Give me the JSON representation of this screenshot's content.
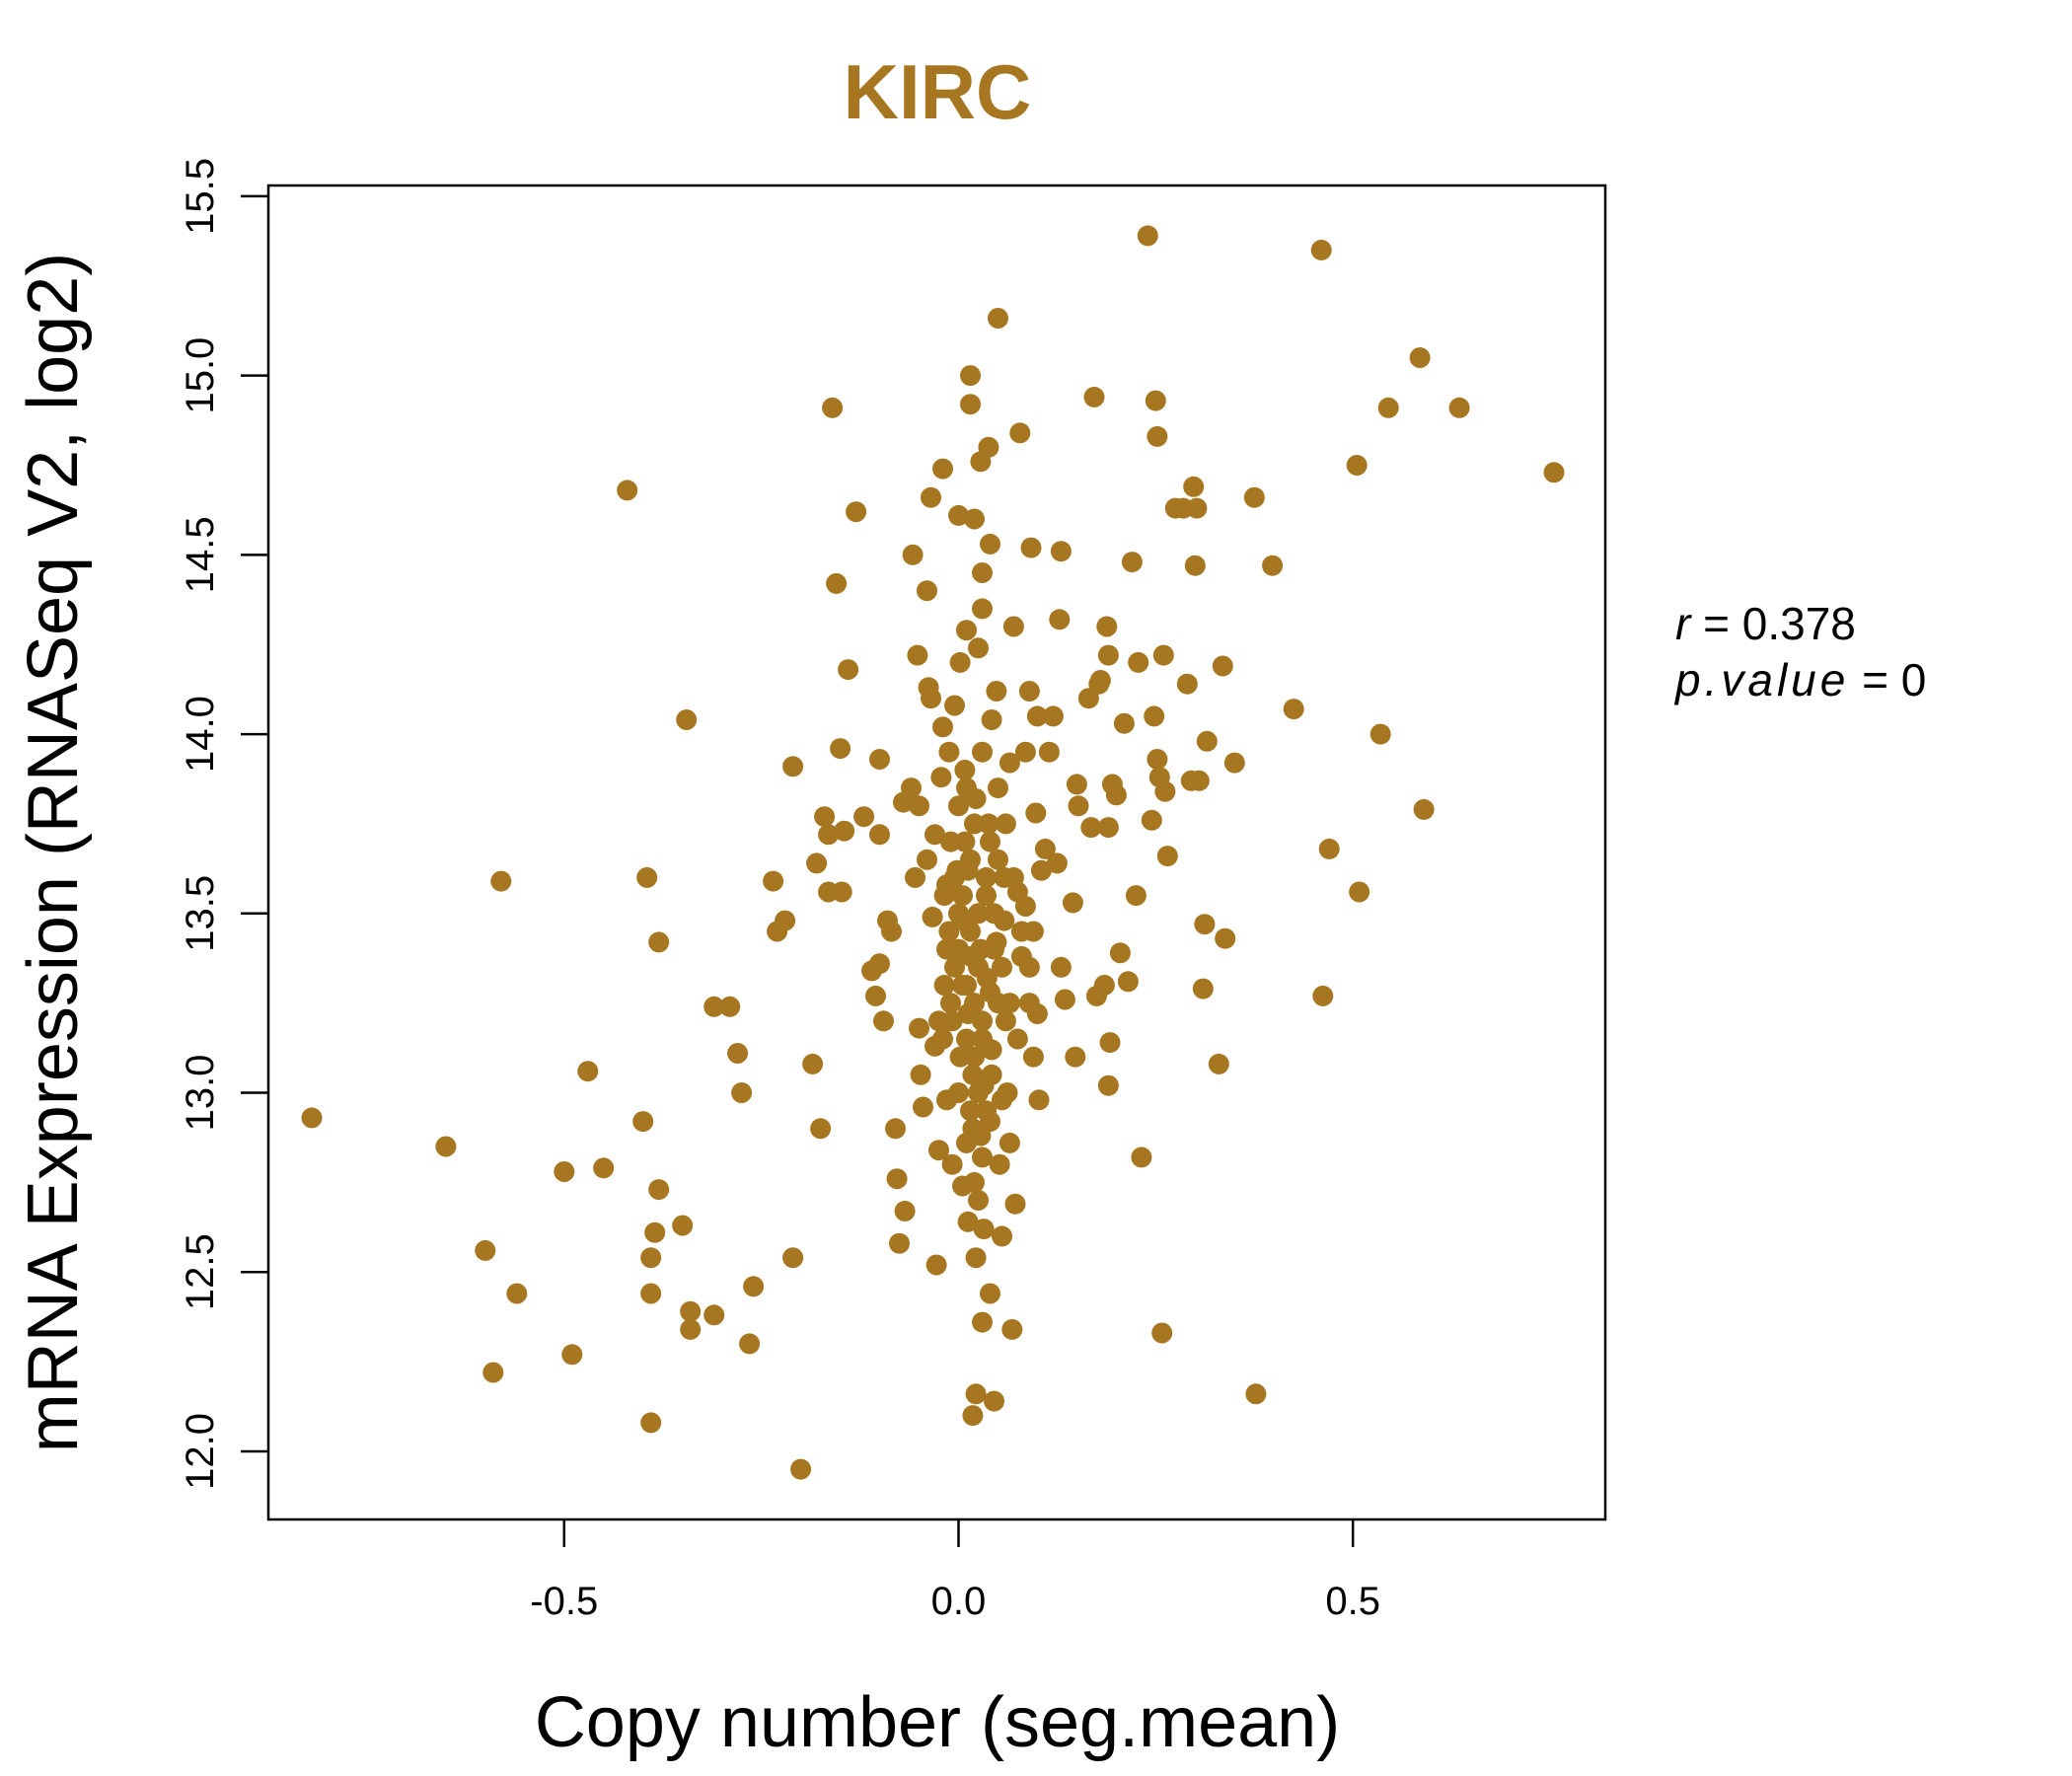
{
  "chart_data": {
    "type": "scatter",
    "title": "KIRC",
    "xlabel": "Copy number (seg.mean)",
    "ylabel": "mRNA Expression (RNASeq V2, log2)",
    "xlim": [
      -0.875,
      0.82
    ],
    "ylim": [
      11.81,
      15.53
    ],
    "x_ticks": [
      -0.5,
      0.0,
      0.5
    ],
    "x_tick_labels": [
      "-0.5",
      "0.0",
      "0.5"
    ],
    "y_ticks": [
      12.0,
      12.5,
      13.0,
      13.5,
      14.0,
      14.5,
      15.0,
      15.5
    ],
    "y_tick_labels": [
      "12.0",
      "12.5",
      "13.0",
      "13.5",
      "14.0",
      "14.5",
      "15.0",
      "15.5"
    ],
    "grid": false,
    "color": "#A67720",
    "stats": {
      "r_label": "r",
      "r_value": "0.378",
      "p_label": "p.value",
      "p_value": "0"
    },
    "points": [
      [
        -0.82,
        12.93
      ],
      [
        -0.65,
        12.85
      ],
      [
        -0.6,
        12.56
      ],
      [
        -0.59,
        12.22
      ],
      [
        -0.58,
        13.59
      ],
      [
        -0.56,
        12.44
      ],
      [
        -0.5,
        12.78
      ],
      [
        -0.49,
        12.27
      ],
      [
        -0.47,
        13.06
      ],
      [
        -0.45,
        12.79
      ],
      [
        -0.42,
        14.68
      ],
      [
        -0.4,
        12.92
      ],
      [
        -0.395,
        13.6
      ],
      [
        -0.39,
        12.54
      ],
      [
        -0.39,
        12.44
      ],
      [
        -0.39,
        12.08
      ],
      [
        -0.385,
        12.61
      ],
      [
        -0.38,
        13.42
      ],
      [
        -0.38,
        12.73
      ],
      [
        -0.35,
        12.63
      ],
      [
        -0.345,
        14.04
      ],
      [
        -0.34,
        12.39
      ],
      [
        -0.34,
        12.34
      ],
      [
        -0.31,
        13.24
      ],
      [
        -0.31,
        12.38
      ],
      [
        -0.29,
        13.24
      ],
      [
        -0.28,
        13.11
      ],
      [
        -0.275,
        13.0
      ],
      [
        -0.265,
        12.3
      ],
      [
        -0.26,
        12.46
      ],
      [
        -0.235,
        13.59
      ],
      [
        -0.23,
        13.45
      ],
      [
        -0.22,
        13.48
      ],
      [
        -0.21,
        13.91
      ],
      [
        -0.21,
        12.54
      ],
      [
        -0.2,
        11.95
      ],
      [
        -0.185,
        13.08
      ],
      [
        -0.18,
        13.64
      ],
      [
        -0.175,
        12.9
      ],
      [
        -0.17,
        13.77
      ],
      [
        -0.165,
        13.72
      ],
      [
        -0.165,
        13.56
      ],
      [
        -0.16,
        14.91
      ],
      [
        -0.155,
        14.42
      ],
      [
        -0.15,
        13.96
      ],
      [
        -0.148,
        13.56
      ],
      [
        -0.145,
        13.73
      ],
      [
        -0.14,
        14.18
      ],
      [
        -0.13,
        14.62
      ],
      [
        -0.12,
        13.77
      ],
      [
        -0.11,
        13.34
      ],
      [
        -0.105,
        13.27
      ],
      [
        -0.1,
        13.93
      ],
      [
        -0.1,
        13.36
      ],
      [
        -0.1,
        13.72
      ],
      [
        -0.095,
        13.2
      ],
      [
        -0.09,
        13.48
      ],
      [
        -0.085,
        13.45
      ],
      [
        -0.08,
        12.9
      ],
      [
        -0.078,
        12.76
      ],
      [
        -0.075,
        12.58
      ],
      [
        -0.07,
        13.81
      ],
      [
        -0.068,
        12.67
      ],
      [
        -0.06,
        13.85
      ],
      [
        -0.058,
        14.5
      ],
      [
        -0.055,
        13.6
      ],
      [
        -0.052,
        14.22
      ],
      [
        -0.05,
        13.18
      ],
      [
        -0.05,
        13.8
      ],
      [
        -0.048,
        13.05
      ],
      [
        -0.045,
        12.96
      ],
      [
        -0.04,
        14.4
      ],
      [
        -0.04,
        13.65
      ],
      [
        -0.038,
        14.13
      ],
      [
        -0.035,
        14.1
      ],
      [
        -0.035,
        14.66
      ],
      [
        -0.033,
        13.49
      ],
      [
        -0.03,
        13.13
      ],
      [
        -0.03,
        13.72
      ],
      [
        -0.028,
        12.52
      ],
      [
        -0.025,
        13.2
      ],
      [
        -0.025,
        12.84
      ],
      [
        -0.022,
        13.88
      ],
      [
        -0.02,
        14.02
      ],
      [
        -0.02,
        14.74
      ],
      [
        -0.018,
        13.55
      ],
      [
        -0.015,
        13.4
      ],
      [
        -0.015,
        12.98
      ],
      [
        -0.012,
        13.95
      ],
      [
        -0.01,
        13.7
      ],
      [
        -0.01,
        13.25
      ],
      [
        -0.008,
        12.8
      ],
      [
        -0.005,
        14.08
      ],
      [
        -0.005,
        13.6
      ],
      [
        0.0,
        13.0
      ],
      [
        0.0,
        13.5
      ],
      [
        0.0,
        13.8
      ],
      [
        0.0,
        14.61
      ],
      [
        0.002,
        14.2
      ],
      [
        0.005,
        13.3
      ],
      [
        0.005,
        12.74
      ],
      [
        0.008,
        13.9
      ],
      [
        0.01,
        14.29
      ],
      [
        0.01,
        13.15
      ],
      [
        0.012,
        13.62
      ],
      [
        0.012,
        12.64
      ],
      [
        0.015,
        14.92
      ],
      [
        0.015,
        15.0
      ],
      [
        0.015,
        13.45
      ],
      [
        0.018,
        12.9
      ],
      [
        0.018,
        12.1
      ],
      [
        0.02,
        14.6
      ],
      [
        0.02,
        13.75
      ],
      [
        0.02,
        13.1
      ],
      [
        0.022,
        12.54
      ],
      [
        0.022,
        12.16
      ],
      [
        0.025,
        14.24
      ],
      [
        0.025,
        13.35
      ],
      [
        0.025,
        12.7
      ],
      [
        0.028,
        14.76
      ],
      [
        0.03,
        14.45
      ],
      [
        0.03,
        14.35
      ],
      [
        0.03,
        13.95
      ],
      [
        0.03,
        13.2
      ],
      [
        0.03,
        12.36
      ],
      [
        0.032,
        12.62
      ],
      [
        0.035,
        13.55
      ],
      [
        0.035,
        12.95
      ],
      [
        0.038,
        14.8
      ],
      [
        0.04,
        14.53
      ],
      [
        0.04,
        13.7
      ],
      [
        0.04,
        12.44
      ],
      [
        0.042,
        14.04
      ],
      [
        0.042,
        13.05
      ],
      [
        0.045,
        12.14
      ],
      [
        0.045,
        13.4
      ],
      [
        0.048,
        14.12
      ],
      [
        0.05,
        15.16
      ],
      [
        0.05,
        13.85
      ],
      [
        0.05,
        13.25
      ],
      [
        0.052,
        12.8
      ],
      [
        0.055,
        12.6
      ],
      [
        0.058,
        13.6
      ],
      [
        0.06,
        13.75
      ],
      [
        0.062,
        13.0
      ],
      [
        0.065,
        13.92
      ],
      [
        0.065,
        12.86
      ],
      [
        0.068,
        12.34
      ],
      [
        0.07,
        14.3
      ],
      [
        0.072,
        12.69
      ],
      [
        0.075,
        13.56
      ],
      [
        0.078,
        14.84
      ],
      [
        0.08,
        13.45
      ],
      [
        0.085,
        13.95
      ],
      [
        0.09,
        14.12
      ],
      [
        0.09,
        13.35
      ],
      [
        0.092,
        14.52
      ],
      [
        0.095,
        13.1
      ],
      [
        0.098,
        13.78
      ],
      [
        0.1,
        14.05
      ],
      [
        0.1,
        13.22
      ],
      [
        0.102,
        12.98
      ],
      [
        0.105,
        13.62
      ],
      [
        0.11,
        13.68
      ],
      [
        0.115,
        13.95
      ],
      [
        0.12,
        14.05
      ],
      [
        0.125,
        13.64
      ],
      [
        0.128,
        14.32
      ],
      [
        0.13,
        14.51
      ],
      [
        0.13,
        13.35
      ],
      [
        0.135,
        13.26
      ],
      [
        0.145,
        13.53
      ],
      [
        0.148,
        13.1
      ],
      [
        0.15,
        13.86
      ],
      [
        0.152,
        13.8
      ],
      [
        0.165,
        14.1
      ],
      [
        0.168,
        13.74
      ],
      [
        0.172,
        14.94
      ],
      [
        0.175,
        13.27
      ],
      [
        0.178,
        14.14
      ],
      [
        0.18,
        14.15
      ],
      [
        0.185,
        13.3
      ],
      [
        0.188,
        14.3
      ],
      [
        0.19,
        14.22
      ],
      [
        0.19,
        13.74
      ],
      [
        0.19,
        13.02
      ],
      [
        0.192,
        13.14
      ],
      [
        0.195,
        13.86
      ],
      [
        0.2,
        13.83
      ],
      [
        0.205,
        13.39
      ],
      [
        0.21,
        14.03
      ],
      [
        0.215,
        13.31
      ],
      [
        0.22,
        14.48
      ],
      [
        0.225,
        13.55
      ],
      [
        0.228,
        14.2
      ],
      [
        0.232,
        12.82
      ],
      [
        0.24,
        15.39
      ],
      [
        0.245,
        13.76
      ],
      [
        0.248,
        14.05
      ],
      [
        0.25,
        14.93
      ],
      [
        0.252,
        14.83
      ],
      [
        0.252,
        13.93
      ],
      [
        0.255,
        13.88
      ],
      [
        0.26,
        14.22
      ],
      [
        0.262,
        13.84
      ],
      [
        0.265,
        13.66
      ],
      [
        0.258,
        12.33
      ],
      [
        0.275,
        14.63
      ],
      [
        0.285,
        14.63
      ],
      [
        0.29,
        14.14
      ],
      [
        0.295,
        13.87
      ],
      [
        0.298,
        14.69
      ],
      [
        0.3,
        14.47
      ],
      [
        0.302,
        14.63
      ],
      [
        0.305,
        13.87
      ],
      [
        0.31,
        13.29
      ],
      [
        0.312,
        13.47
      ],
      [
        0.315,
        13.98
      ],
      [
        0.33,
        13.08
      ],
      [
        0.335,
        14.19
      ],
      [
        0.338,
        13.43
      ],
      [
        0.35,
        13.92
      ],
      [
        0.375,
        14.66
      ],
      [
        0.377,
        12.16
      ],
      [
        0.398,
        14.47
      ],
      [
        0.425,
        14.07
      ],
      [
        0.46,
        15.35
      ],
      [
        0.462,
        13.27
      ],
      [
        0.47,
        13.68
      ],
      [
        0.505,
        14.75
      ],
      [
        0.508,
        13.56
      ],
      [
        0.535,
        14.0
      ],
      [
        0.545,
        14.91
      ],
      [
        0.585,
        15.05
      ],
      [
        0.59,
        13.79
      ],
      [
        0.635,
        14.91
      ],
      [
        0.755,
        14.73
      ],
      [
        0.0,
        13.4
      ],
      [
        0.005,
        13.55
      ],
      [
        0.01,
        13.3
      ],
      [
        0.015,
        13.65
      ],
      [
        0.02,
        13.25
      ],
      [
        -0.005,
        13.35
      ],
      [
        0.025,
        13.5
      ],
      [
        0.03,
        13.15
      ],
      [
        0.008,
        13.7
      ],
      [
        0.018,
        13.05
      ],
      [
        -0.012,
        13.45
      ],
      [
        0.012,
        13.22
      ],
      [
        0.028,
        13.4
      ],
      [
        0.035,
        13.6
      ],
      [
        0.04,
        13.28
      ],
      [
        0.002,
        13.1
      ],
      [
        0.022,
        13.82
      ],
      [
        -0.018,
        13.3
      ],
      [
        0.032,
        13.02
      ],
      [
        0.045,
        13.5
      ],
      [
        0.05,
        13.65
      ],
      [
        0.055,
        13.35
      ],
      [
        0.06,
        13.2
      ],
      [
        0.015,
        12.95
      ],
      [
        0.025,
        13.0
      ],
      [
        -0.008,
        13.2
      ],
      [
        0.038,
        13.75
      ],
      [
        0.01,
        13.85
      ],
      [
        -0.002,
        13.62
      ],
      [
        0.028,
        12.88
      ],
      [
        0.042,
        13.12
      ],
      [
        0.048,
        13.42
      ],
      [
        0.006,
        13.48
      ],
      [
        0.016,
        13.38
      ],
      [
        0.036,
        13.32
      ],
      [
        -0.015,
        13.58
      ],
      [
        0.058,
        13.48
      ],
      [
        0.065,
        13.25
      ],
      [
        0.07,
        13.6
      ],
      [
        0.075,
        13.15
      ],
      [
        0.08,
        13.38
      ],
      [
        0.085,
        13.52
      ],
      [
        0.09,
        13.25
      ],
      [
        0.095,
        13.45
      ],
      [
        0.03,
        12.82
      ],
      [
        0.02,
        12.75
      ],
      [
        0.04,
        12.92
      ],
      [
        0.055,
        12.98
      ],
      [
        0.01,
        12.86
      ],
      [
        -0.02,
        13.15
      ]
    ]
  }
}
